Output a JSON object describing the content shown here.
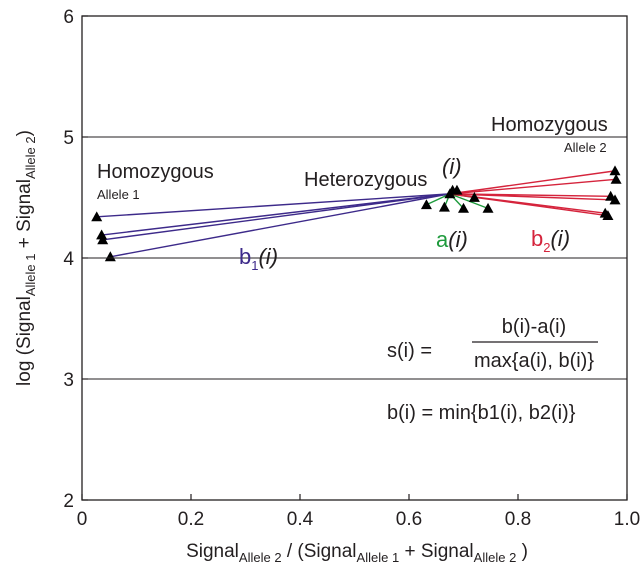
{
  "chart_data": {
    "type": "scatter",
    "xlabel": {
      "main": "Signal",
      "sub1": "Allele 2",
      "mid": " / (Signal",
      "sub2": "Allele 1",
      "plus": " + Signal",
      "sub3": "Allele 2",
      "end": " )"
    },
    "ylabel": {
      "main": "log (Signal",
      "sub1": "Allele 1",
      "plus": " + Signal",
      "sub2": "Allele 2",
      "end": ")"
    },
    "xlim": [
      0,
      1.0
    ],
    "ylim": [
      2,
      6
    ],
    "x_ticks": [
      "0",
      "0.2",
      "0.4",
      "0.6",
      "0.8",
      "1.0"
    ],
    "y_ticks": [
      "2",
      "3",
      "4",
      "5",
      "6"
    ],
    "gridlines_y": [
      3,
      4,
      5
    ],
    "reference_point": {
      "x": 0.675,
      "y": 4.53,
      "label": "(i)"
    },
    "series": [
      {
        "name": "Homozygous Allele 1",
        "color": "#3d2a8a",
        "points": [
          [
            0.027,
            4.34
          ],
          [
            0.036,
            4.19
          ],
          [
            0.038,
            4.15
          ],
          [
            0.052,
            4.01
          ]
        ]
      },
      {
        "name": "Heterozygous",
        "color": "#1e9a3c",
        "points": [
          [
            0.632,
            4.44
          ],
          [
            0.665,
            4.42
          ],
          [
            0.68,
            4.56
          ],
          [
            0.688,
            4.56
          ],
          [
            0.7,
            4.41
          ],
          [
            0.72,
            4.5
          ],
          [
            0.745,
            4.41
          ]
        ]
      },
      {
        "name": "Homozygous Allele 2",
        "color": "#d5243c",
        "points": [
          [
            0.96,
            4.37
          ],
          [
            0.965,
            4.35
          ],
          [
            0.97,
            4.51
          ],
          [
            0.978,
            4.48
          ],
          [
            0.978,
            4.72
          ],
          [
            0.98,
            4.65
          ]
        ]
      }
    ],
    "annotations": {
      "homo1": "Homozygous",
      "homo1_sub": "Allele 1",
      "hetero": "Heterozygous",
      "homo2": "Homozygous",
      "homo2_sub": "Allele 2",
      "i_label": "(i)",
      "a_label": "a",
      "a_arg": "(i)",
      "b1_label": "b",
      "b1_sub": "1",
      "b1_arg": "(i)",
      "b2_label": "b",
      "b2_sub": "2",
      "b2_arg": "(i)",
      "s_lhs": "s(i) =",
      "s_num": "b(i)-a(i)",
      "s_den": "max{a(i), b(i)}",
      "b_formula": "b(i) = min{b1(i), b2(i)}"
    },
    "colors": {
      "a": "#1e9a3c",
      "b1": "#3d2a8a",
      "b2": "#d5243c",
      "axis": "#231f20"
    }
  }
}
